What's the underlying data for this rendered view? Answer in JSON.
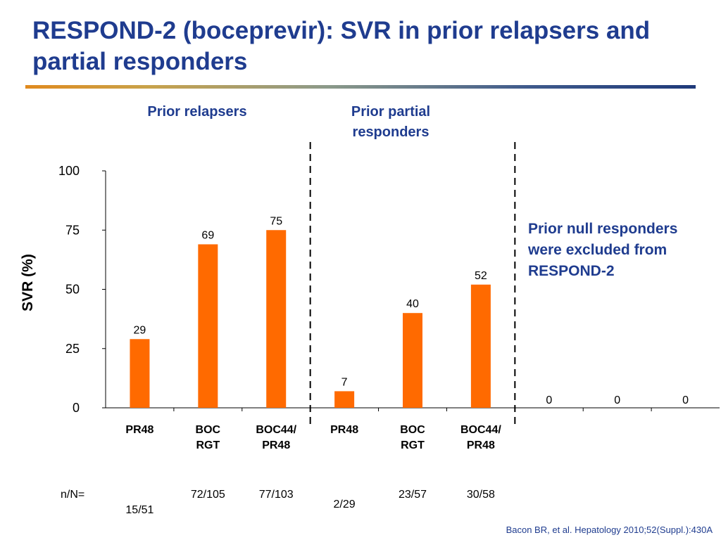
{
  "slide": {
    "title": "RESPOND-2 (boceprevir): SVR in prior relapsers and partial responders",
    "group_labels": [
      "Prior relapsers",
      "Prior partial responders"
    ],
    "note": "Prior null responders were excluded from RESPOND-2",
    "nn_label": "n/N=",
    "citation": "Bacon BR, et al. Hepatology 2010;52(Suppl.):430A",
    "colors": {
      "title": "#1f3c8f",
      "bar": "#ff6a00"
    }
  },
  "chart_data": {
    "type": "bar",
    "ylabel": "SVR (%)",
    "ylim": [
      0,
      100
    ],
    "yticks": [
      0,
      25,
      50,
      75,
      100
    ],
    "categories": [
      [
        "PR48"
      ],
      [
        "BOC",
        "RGT"
      ],
      [
        "BOC44/",
        "PR48"
      ],
      [
        "PR48"
      ],
      [
        "BOC",
        "RGT"
      ],
      [
        "BOC44/",
        "PR48"
      ],
      [],
      [],
      []
    ],
    "values": [
      29,
      69,
      75,
      7,
      40,
      52,
      0,
      0,
      0
    ],
    "counts": [
      "15/51",
      "72/105",
      "77/103",
      "2/29",
      "23/57",
      "30/58",
      "",
      "",
      ""
    ],
    "groups": [
      "Prior relapsers",
      "Prior partial responders",
      "Prior null responders"
    ]
  }
}
